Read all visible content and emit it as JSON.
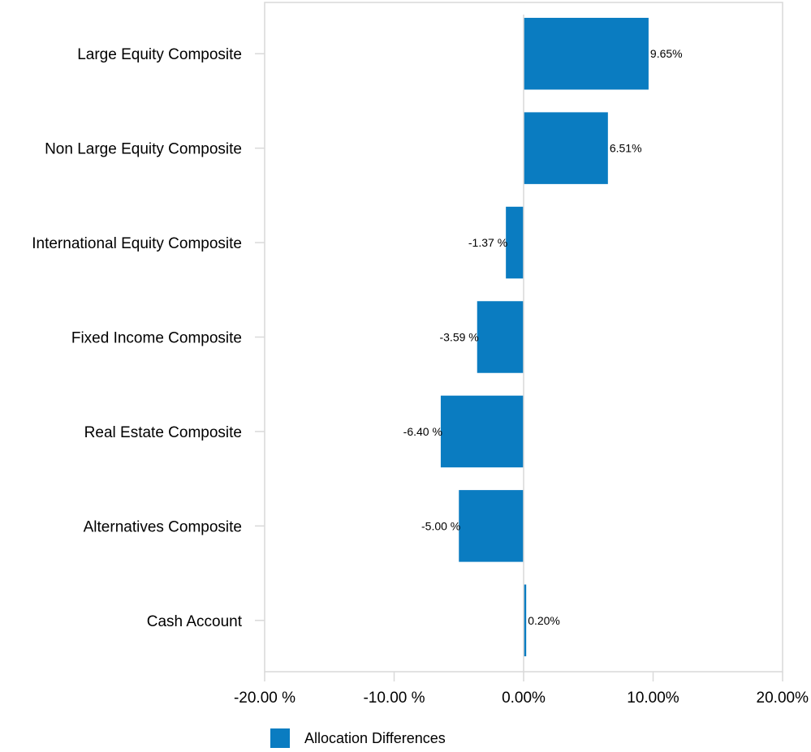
{
  "chart_data": {
    "type": "bar",
    "orientation": "horizontal",
    "categories": [
      "Large Equity Composite",
      "Non Large Equity Composite",
      "International Equity Composite",
      "Fixed Income Composite",
      "Real Estate Composite",
      "Alternatives Composite",
      "Cash Account"
    ],
    "series": [
      {
        "name": "Allocation Differences",
        "color": "#0a7cc1",
        "values": [
          9.65,
          6.51,
          -1.37,
          -3.59,
          -6.4,
          -5.0,
          0.2
        ]
      }
    ],
    "data_labels": [
      "9.65%",
      "6.51%",
      "-1.37 %",
      "-3.59 %",
      "-6.40 %",
      "-5.00 %",
      "0.20%"
    ],
    "xlim": [
      -20,
      20
    ],
    "xticks": [
      -20,
      -10,
      0,
      10,
      20
    ],
    "xtick_labels": [
      "-20.00 %",
      "-10.00 %",
      "0.00%",
      "10.00%",
      "20.00%"
    ],
    "grid": false,
    "legend_position": "bottom"
  }
}
